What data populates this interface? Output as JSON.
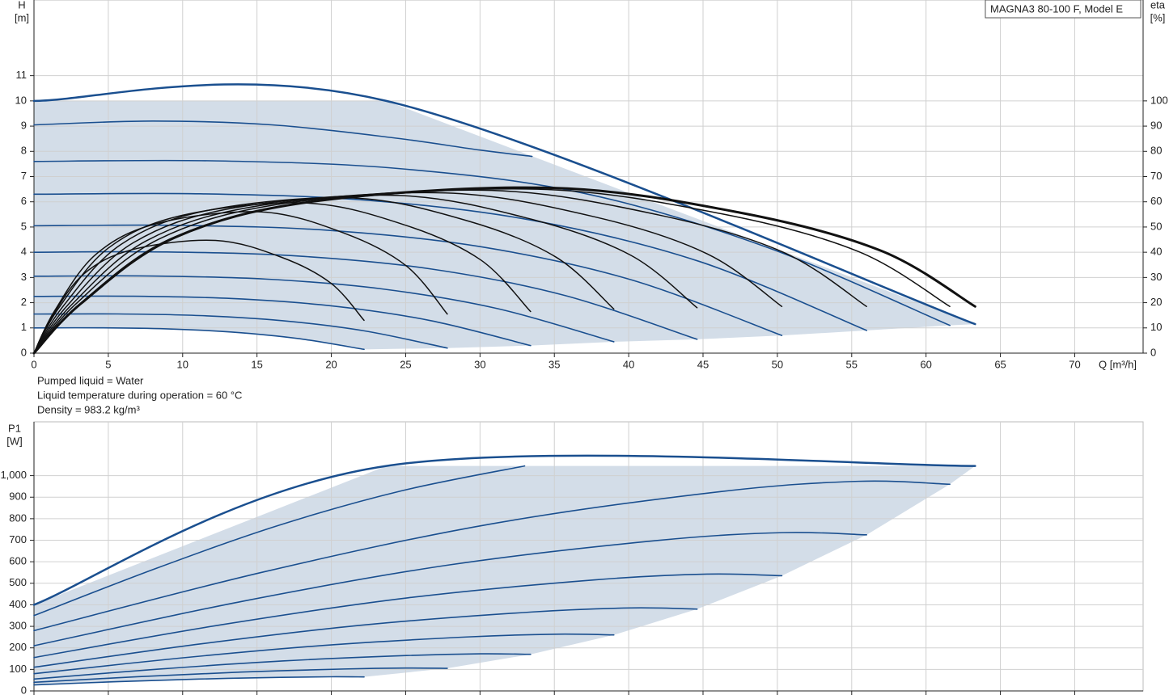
{
  "chart_data": [
    {
      "type": "line",
      "title": "MAGNA3 80-100 F, Model E",
      "ylabel": [
        "H",
        "[m]"
      ],
      "y2label": [
        "eta",
        "[%]"
      ],
      "xlabel": "Q [m³/h]",
      "annotations": [
        "Pumped liquid = Water",
        "Liquid temperature during operation = 60 °C",
        "Density = 983.2 kg/m³"
      ],
      "xlim": [
        0,
        74.6
      ],
      "xticks": [
        0,
        5,
        10,
        15,
        20,
        25,
        30,
        35,
        40,
        45,
        50,
        55,
        60,
        65,
        70
      ],
      "ylim": [
        0,
        14
      ],
      "yticks": [
        0,
        1,
        2,
        3,
        4,
        5,
        6,
        7,
        8,
        9,
        10,
        11
      ],
      "y2lim": [
        0,
        140
      ],
      "y2ticks": [
        0,
        10,
        20,
        30,
        40,
        50,
        60,
        70,
        80,
        90,
        100
      ],
      "grid": true,
      "fill": "#d3dde8",
      "series": [
        {
          "color": "#1a4f8f",
          "width": 2.5,
          "x": [
            0,
            23.7,
            63.3
          ],
          "values": [
            10,
            10,
            1.15
          ]
        },
        {
          "color": "#1a4f8f",
          "width": 1.6,
          "x": [
            0,
            4.44,
            8.88,
            13.32,
            17.76,
            22.2
          ],
          "values": [
            1.0,
            1.003,
            0.962,
            0.836,
            0.579,
            0.15
          ]
        },
        {
          "color": "#1a4f8f",
          "width": 1.6,
          "x": [
            0,
            5.56,
            11.12,
            16.68,
            22.24,
            27.8
          ],
          "values": [
            1.55,
            1.554,
            1.49,
            1.288,
            0.881,
            0.2
          ]
        },
        {
          "color": "#1a4f8f",
          "width": 1.6,
          "x": [
            0,
            6.68,
            13.36,
            20.04,
            26.72,
            33.4
          ],
          "values": [
            2.25,
            2.256,
            2.163,
            1.872,
            1.284,
            0.3
          ]
        },
        {
          "color": "#1a4f8f",
          "width": 1.6,
          "x": [
            0,
            7.8,
            15.6,
            23.4,
            31.2,
            39
          ],
          "values": [
            3.05,
            3.058,
            2.935,
            2.547,
            1.763,
            0.45
          ]
        },
        {
          "color": "#1a4f8f",
          "width": 1.6,
          "x": [
            0,
            8.92,
            17.84,
            26.76,
            35.68,
            44.6
          ],
          "values": [
            4.0,
            4.011,
            3.846,
            3.332,
            2.291,
            0.55
          ]
        },
        {
          "color": "#1a4f8f",
          "width": 1.6,
          "x": [
            0,
            10.06,
            20.12,
            30.18,
            40.24,
            50.3
          ],
          "values": [
            5.05,
            5.064,
            4.856,
            4.207,
            2.896,
            0.7
          ]
        },
        {
          "color": "#1a4f8f",
          "width": 1.6,
          "x": [
            0,
            11.2,
            22.4,
            33.6,
            44.8,
            56
          ],
          "values": [
            6.3,
            6.317,
            6.06,
            5.255,
            3.626,
            0.9
          ]
        },
        {
          "color": "#1a4f8f",
          "width": 1.6,
          "x": [
            0,
            12.32,
            24.64,
            36.96,
            49.28,
            61.6
          ],
          "values": [
            7.6,
            7.621,
            7.312,
            6.342,
            4.2,
            1.1
          ]
        },
        {
          "color": "#1a4f8f",
          "width": 1.6,
          "x": [
            0,
            8,
            16,
            24,
            30,
            33.5
          ],
          "values": [
            9.05,
            9.2,
            9.05,
            8.55,
            8.05,
            7.8
          ]
        },
        {
          "color": "#111111",
          "width": 1.5,
          "axis": "y2",
          "x": [
            0,
            1.11,
            3.33,
            6.66,
            12.21,
            16.65,
            19.98,
            22.2
          ],
          "values": [
            0,
            13.4,
            31.3,
            41.1,
            44.7,
            38.0,
            27.7,
            13
          ]
        },
        {
          "color": "#111111",
          "width": 1.5,
          "axis": "y2",
          "x": [
            0,
            1.39,
            4.17,
            8.34,
            15.29,
            20.85,
            25.02,
            27.8
          ],
          "values": [
            0,
            16.8,
            39.2,
            51.5,
            56,
            47.6,
            34.7,
            15.5
          ]
        },
        {
          "color": "#111111",
          "width": 1.5,
          "axis": "y2",
          "x": [
            0,
            1.67,
            5.01,
            10.02,
            18.37,
            25.05,
            30.06,
            33.4
          ],
          "values": [
            0,
            17.9,
            41.7,
            54.7,
            59.5,
            50.6,
            36.9,
            16.5
          ]
        },
        {
          "color": "#111111",
          "width": 1.5,
          "axis": "y2",
          "x": [
            0,
            1.95,
            5.85,
            11.7,
            21.45,
            29.25,
            35.1,
            39
          ],
          "values": [
            0,
            18.5,
            43.1,
            56.6,
            61.5,
            52.3,
            38.1,
            17.5
          ]
        },
        {
          "color": "#111111",
          "width": 1.5,
          "axis": "y2",
          "x": [
            0,
            2.23,
            6.69,
            13.38,
            24.53,
            33.45,
            40.14,
            44.6
          ],
          "values": [
            0,
            18.8,
            43.8,
            57.5,
            62.5,
            53.1,
            38.8,
            18
          ]
        },
        {
          "color": "#111111",
          "width": 1.5,
          "axis": "y2",
          "x": [
            0,
            2.52,
            7.55,
            15.09,
            27.67,
            37.73,
            45.27,
            50.3
          ],
          "values": [
            0,
            19.1,
            44.5,
            58.4,
            63.5,
            54.0,
            39.4,
            18.5
          ]
        },
        {
          "color": "#111111",
          "width": 1.5,
          "axis": "y2",
          "x": [
            0,
            2.8,
            8.4,
            16.8,
            30.8,
            42,
            50.4,
            56
          ],
          "values": [
            0,
            19.4,
            45.2,
            59.3,
            64.5,
            54.8,
            40.0,
            18.5
          ]
        },
        {
          "color": "#111111",
          "width": 1.5,
          "axis": "y2",
          "x": [
            0,
            3.08,
            9.24,
            18.48,
            33.88,
            46.2,
            55.44,
            61.6
          ],
          "values": [
            0,
            19.5,
            45.5,
            59.8,
            65,
            55.3,
            40.3,
            18.5
          ]
        },
        {
          "color": "#111111",
          "width": 3,
          "axis": "y2",
          "x": [
            0,
            3.17,
            9.5,
            18.99,
            34.82,
            47.48,
            56.97,
            63.3
          ],
          "values": [
            0,
            19.7,
            45.9,
            60.3,
            65.5,
            55.7,
            40.6,
            18.5
          ]
        }
      ]
    },
    {
      "type": "line",
      "ylabel": [
        "P1",
        "[W]"
      ],
      "xlim": [
        0,
        74.6
      ],
      "xticks": [
        0,
        5,
        10,
        15,
        20,
        25,
        30,
        35,
        40,
        45,
        50,
        55,
        60,
        65,
        70
      ],
      "show_xtick_labels": false,
      "ylim": [
        0,
        1250
      ],
      "yticks": [
        0,
        100,
        200,
        300,
        400,
        500,
        600,
        700,
        800,
        900,
        {
          "value": 1000,
          "label": "1,000"
        }
      ],
      "grid": true,
      "fill": "#d3dde8",
      "series": [
        {
          "color": "#1a4f8f",
          "width": 2.5,
          "x": [
            0,
            23.7,
            63.3
          ],
          "values": [
            400,
            1045,
            1045
          ]
        },
        {
          "color": "#1a4f8f",
          "width": 1.6,
          "x": [
            0,
            5.55,
            11.1,
            16.65,
            19.98,
            22.2
          ],
          "values": [
            28,
            42.8,
            55.0,
            63.2,
            65.7,
            65
          ]
        },
        {
          "color": "#1a4f8f",
          "width": 1.6,
          "x": [
            0,
            6.95,
            13.9,
            20.85,
            25.02,
            27.8
          ],
          "values": [
            40,
            66,
            87.5,
            101.8,
            106.3,
            105
          ]
        },
        {
          "color": "#1a4f8f",
          "width": 1.6,
          "x": [
            0,
            8.35,
            16.7,
            25.05,
            30.06,
            33.4
          ],
          "values": [
            55,
            101,
            139,
            164.3,
            172.3,
            170
          ]
        },
        {
          "color": "#1a4f8f",
          "width": 1.6,
          "x": [
            0,
            9.75,
            19.5,
            29.25,
            35.1,
            39
          ],
          "values": [
            80,
            152,
            211.4,
            251,
            263.6,
            260
          ]
        },
        {
          "color": "#1a4f8f",
          "width": 1.6,
          "x": [
            0,
            11.15,
            22.3,
            33.45,
            40.14,
            44.6
          ],
          "values": [
            110,
            218,
            307.1,
            366.5,
            385.4,
            380
          ]
        },
        {
          "color": "#1a4f8f",
          "width": 1.6,
          "x": [
            0,
            12.58,
            25.15,
            37.73,
            45.27,
            50.3
          ],
          "values": [
            155,
            307,
            432.4,
            516,
            542.6,
            535
          ]
        },
        {
          "color": "#1a4f8f",
          "width": 1.6,
          "x": [
            0,
            14,
            28,
            42,
            50.4,
            56
          ],
          "values": [
            210,
            416,
            586,
            699.3,
            735.3,
            725
          ]
        },
        {
          "color": "#1a4f8f",
          "width": 1.6,
          "x": [
            0,
            15.4,
            30.8,
            46.2,
            55.44,
            61.6
          ],
          "values": [
            280,
            552,
            776.4,
            926,
            973.6,
            960
          ]
        },
        {
          "color": "#1a4f8f",
          "width": 1.6,
          "x": [
            0,
            8.25,
            16.5,
            24.75,
            33
          ],
          "values": [
            350,
            570,
            770,
            930,
            1045
          ]
        }
      ]
    }
  ]
}
